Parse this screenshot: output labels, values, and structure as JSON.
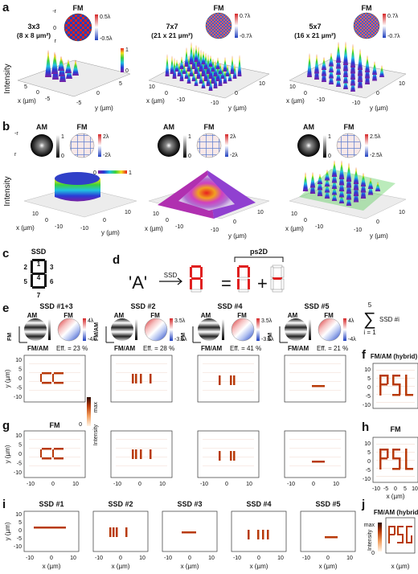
{
  "panels": {
    "a": {
      "label": "a",
      "ylabel": "Intensity",
      "xlabel": "x (µm)",
      "ylabel2": "y (µm)",
      "colorbar_min": "0",
      "colorbar_max": "1",
      "inset_title": "FM",
      "inset_rtop": "-r",
      "inset_rbot": "r",
      "inset_sub": "AOD",
      "inset_axis_zero": "0",
      "cols": [
        {
          "title": "3x3",
          "subtitle": "(8 x 8 µm²)",
          "fm_max": "0.5λ",
          "fm_min": "-0.5λ"
        },
        {
          "title": "7x7",
          "subtitle": "(21 x 21 µm²)",
          "fm_max": "0.7λ",
          "fm_min": "-0.7λ"
        },
        {
          "title": "5x7",
          "subtitle": "(16 x 21 µm²)",
          "fm_max": "0.7λ",
          "fm_min": "-0.7λ"
        }
      ],
      "ticks_a1": [
        "5",
        "0",
        "-5",
        "-5",
        "0",
        "5"
      ],
      "ticks_a2": [
        "10",
        "0",
        "-10",
        "-10",
        "0",
        "10"
      ],
      "ticks_a3": [
        "10",
        "0",
        "-10",
        "-10",
        "0",
        "10"
      ]
    },
    "b": {
      "label": "b",
      "ylabel": "Intensity",
      "xlabel": "x (µm)",
      "ylabel2": "y (µm)",
      "am": "AM",
      "fm": "FM",
      "am_min": "0",
      "am_max": "1",
      "colorbar_min": "0",
      "colorbar_max": "1",
      "cols": [
        {
          "fm_max": "2λ",
          "fm_min": "-2λ"
        },
        {
          "fm_max": "2λ",
          "fm_min": "-2λ"
        },
        {
          "fm_max": "2.5λ",
          "fm_min": "-2.5λ"
        }
      ],
      "ticks": [
        "10",
        "0",
        "-10",
        "-10",
        "0",
        "10"
      ]
    },
    "c": {
      "label": "c",
      "title": "SSD",
      "segments": [
        "1",
        "2",
        "3",
        "4",
        "5",
        "6",
        "7"
      ]
    },
    "d": {
      "label": "d",
      "letter": "'A'",
      "arrow": "SSD",
      "equals": "=",
      "plus": "+",
      "bracket": "ps2D"
    },
    "e": {
      "label": "e",
      "am": "AM",
      "fm": "FM",
      "fmam": "FM/AM",
      "items": [
        {
          "title": "SSD #1+3",
          "fm_max": "4λ",
          "fm_min": "-4λ",
          "eff": "Eff. = 23 %"
        },
        {
          "title": "SSD #2",
          "fm_max": "3.5λ",
          "fm_min": "-3.5λ",
          "eff": "Eff. = 28 %"
        },
        {
          "title": "SSD #4",
          "fm_max": "3.5λ",
          "fm_min": "-3.5λ",
          "eff": "Eff. = 41 %"
        },
        {
          "title": "SSD #5",
          "fm_max": "4λ",
          "fm_min": "-4λ",
          "eff": "Eff. = 21 %"
        }
      ],
      "sum_top": "5",
      "sum_expr": "SSD #i",
      "sum_bot": "i = 1",
      "intensity_label": "Intensity",
      "intensity_max": "max",
      "intensity_min": "0",
      "yaxis_label": "y (µm)",
      "yticks": [
        "10",
        "5",
        "0",
        "-5",
        "-10"
      ],
      "xticks": [
        "-10",
        "0",
        "10"
      ]
    },
    "f": {
      "label": "f",
      "title": "FM/AM (hybrid)",
      "text": "PSL"
    },
    "g": {
      "label": "g",
      "title": "FM",
      "yaxis_label": "y (µm)",
      "xaxis_label": "x (µm)"
    },
    "h": {
      "label": "h",
      "title": "FM",
      "text": "PSL",
      "xaxis_label": "x (µm)",
      "xticks": [
        "-10",
        "-5",
        "0",
        "5",
        "10"
      ]
    },
    "i": {
      "label": "i",
      "titles": [
        "SSD #1",
        "SSD #2",
        "SSD #3",
        "SSD #4",
        "SSD #5"
      ],
      "yaxis_label": "y (µm)",
      "xaxis_label": "x (µm)",
      "intensity_label": "Intensity",
      "intensity_max": "max",
      "intensity_min": "0"
    },
    "j": {
      "label": "j",
      "title": "FM/AM (hybrid)",
      "text": "PSG",
      "xaxis_label": "x (µm)"
    }
  },
  "colors": {
    "segment_red": "#e02020",
    "spot_color": "#b83a08",
    "ring_red": "#d62728",
    "ring_blue": "#1f3fbf"
  }
}
